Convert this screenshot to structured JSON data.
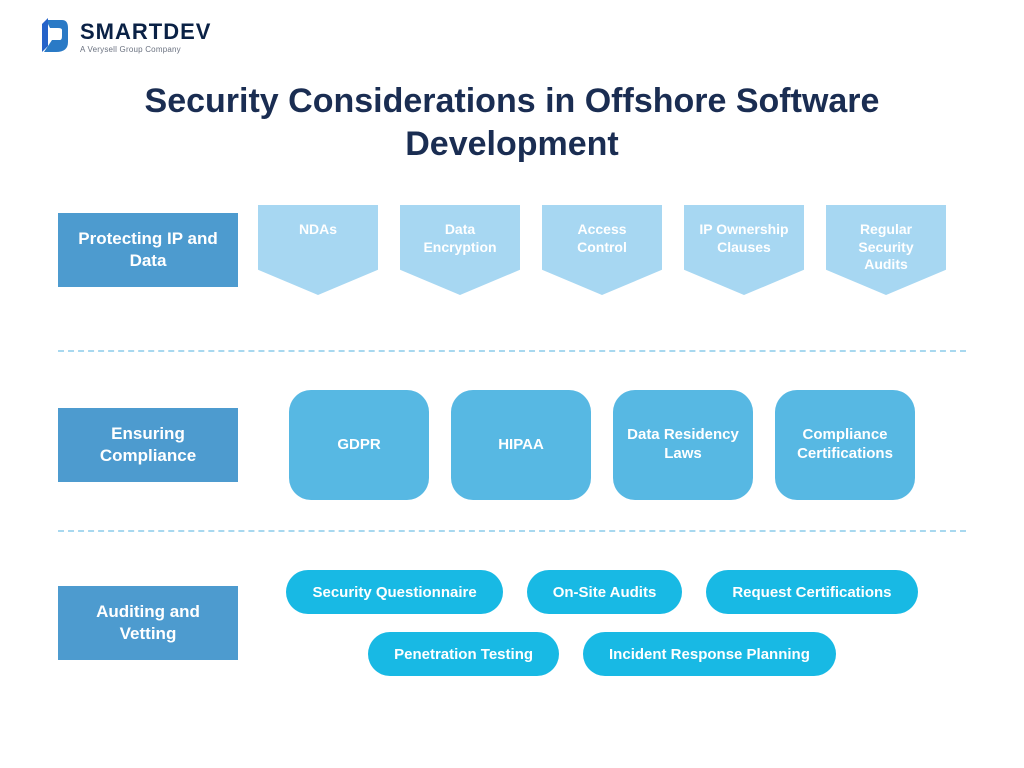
{
  "brand": {
    "name": "SMARTDEV",
    "tagline": "A Verysell Group Company",
    "logo_color_primary": "#2a7ac6",
    "logo_color_secondary": "#2563c9",
    "logo_text_color": "#0a2145",
    "tagline_color": "#6b7280"
  },
  "title": "Security Considerations in Offshore Software Development",
  "title_color": "#1a2d52",
  "title_fontsize": 34,
  "divider_color": "#a8d8ef",
  "category_label_bg": "#4d9bcf",
  "category_label_fontsize": 17,
  "sections": [
    {
      "label": "Protecting IP and Data",
      "item_style": "chevron",
      "item_bg": "#a7d7f2",
      "item_text_color": "#ffffff",
      "item_fontsize": 14,
      "items": [
        "NDAs",
        "Data Encryption",
        "Access Control",
        "IP Ownership Clauses",
        "Regular Security Audits"
      ]
    },
    {
      "label": "Ensuring Compliance",
      "item_style": "roundrect",
      "item_bg": "#57b8e3",
      "item_text_color": "#ffffff",
      "item_fontsize": 15,
      "items": [
        "GDPR",
        "HIPAA",
        "Data Residency Laws",
        "Compliance Certifications"
      ]
    },
    {
      "label": "Auditing and Vetting",
      "item_style": "pill",
      "item_bg": "#18b9e4",
      "item_text_color": "#ffffff",
      "item_fontsize": 15,
      "pill_rows": [
        [
          "Security Questionnaire",
          "On-Site Audits",
          "Request Certifications"
        ],
        [
          "Penetration Testing",
          "Incident Response Planning"
        ]
      ]
    }
  ]
}
